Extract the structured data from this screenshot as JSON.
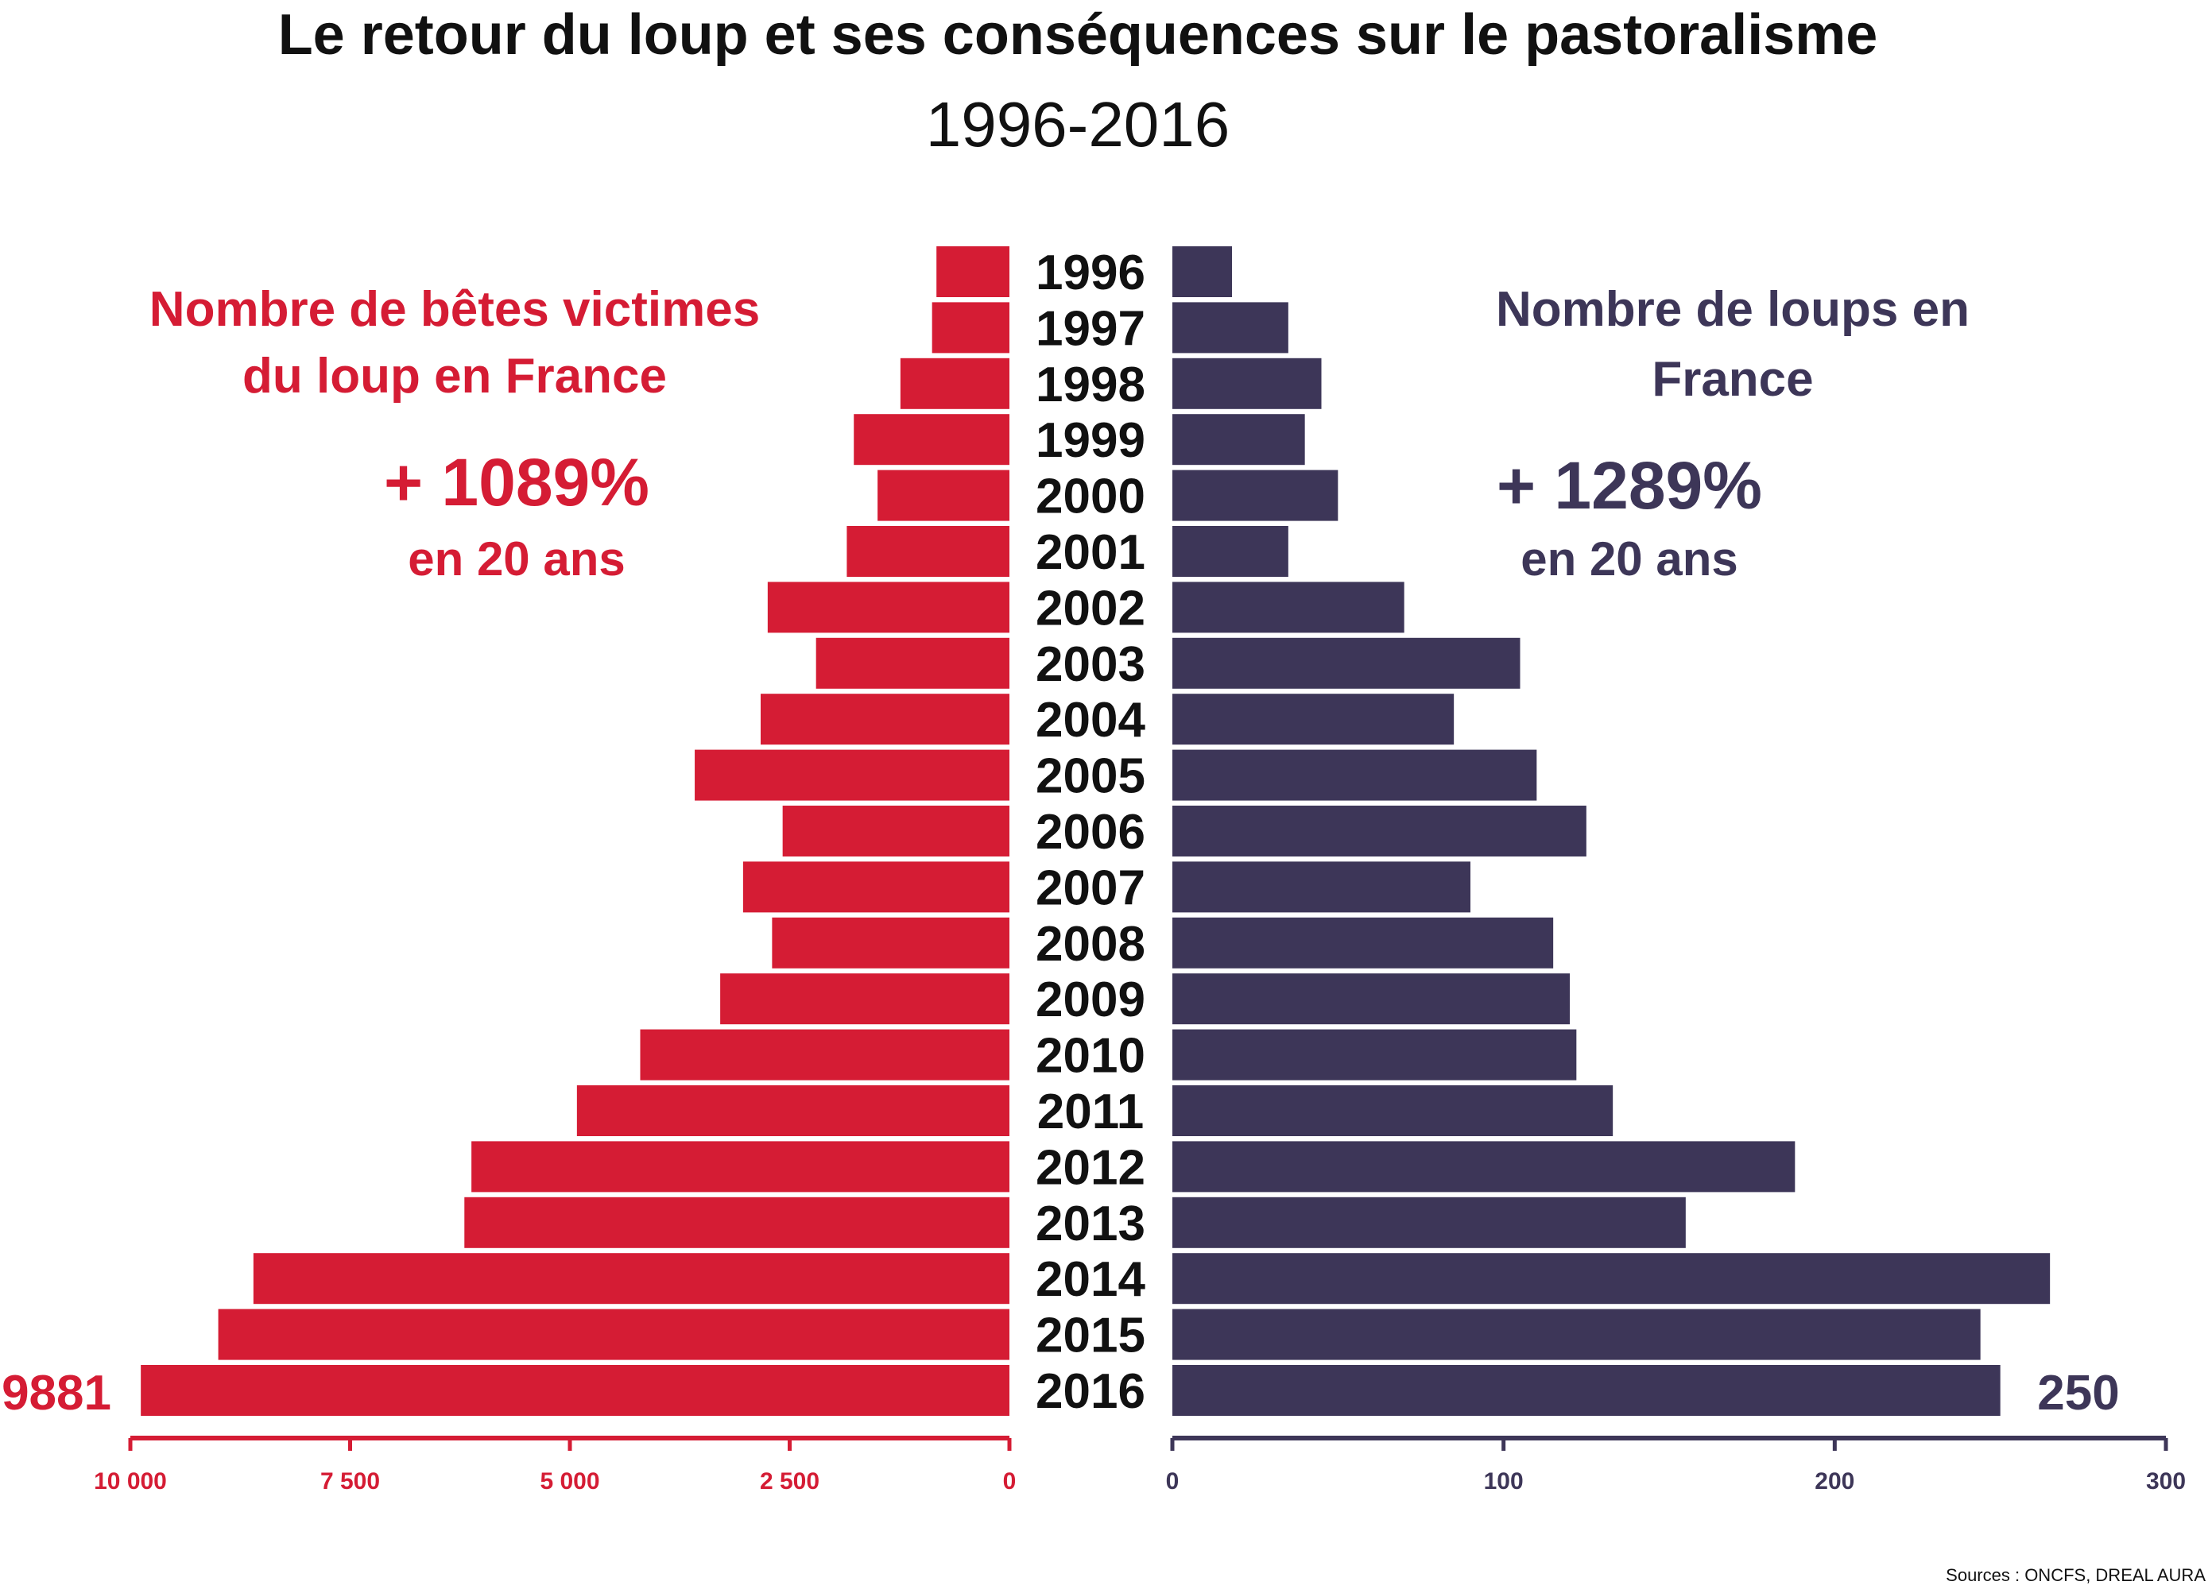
{
  "title": "Le retour du loup et ses conséquences sur le pastoralisme",
  "subtitle": "1996-2016",
  "source": "Sources : ONCFS, DREAL AURA",
  "colors": {
    "left": "#d51c34",
    "right": "#3d3658",
    "text": "#111111"
  },
  "left_panel": {
    "heading_line1": "Nombre de bêtes victimes",
    "heading_line2": "du loup en France",
    "growth": "+ 1089%",
    "growth_caption": "en 20 ans",
    "last_value_label": "9881"
  },
  "right_panel": {
    "heading_line1": "Nombre de loups en",
    "heading_line2": "France",
    "growth": "+ 1289%",
    "growth_caption": "en 20 ans",
    "last_value_label": "250"
  },
  "chart_data": {
    "type": "bar",
    "categories": [
      "1996",
      "1997",
      "1998",
      "1999",
      "2000",
      "2001",
      "2002",
      "2003",
      "2004",
      "2005",
      "2006",
      "2007",
      "2008",
      "2009",
      "2010",
      "2011",
      "2012",
      "2013",
      "2014",
      "2015",
      "2016"
    ],
    "series": [
      {
        "name": "Nombre de bêtes victimes du loup en France",
        "values": [
          830,
          880,
          1240,
          1770,
          1500,
          1850,
          2750,
          2200,
          2830,
          3580,
          2580,
          3030,
          2700,
          3290,
          4200,
          4920,
          6120,
          6200,
          8600,
          9000,
          9881
        ],
        "xlim": [
          0,
          10000
        ],
        "ticks": [
          "10 000",
          "7 500",
          "5 000",
          "2 500",
          "0"
        ]
      },
      {
        "name": "Nombre de loups en France",
        "values": [
          18,
          35,
          45,
          40,
          50,
          35,
          70,
          105,
          85,
          110,
          125,
          90,
          115,
          120,
          122,
          133,
          188,
          155,
          265,
          244,
          250
        ],
        "xlim": [
          0,
          300
        ],
        "ticks": [
          "0",
          "100",
          "200",
          "300"
        ]
      }
    ]
  }
}
